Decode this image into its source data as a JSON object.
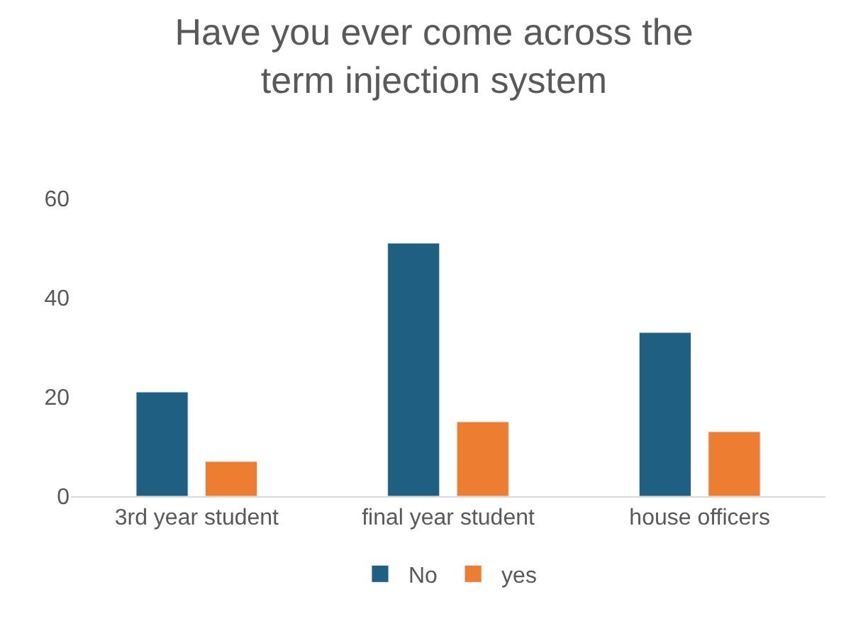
{
  "chart_data": {
    "type": "bar",
    "title": "Have you ever come across the term injection system",
    "categories": [
      "3rd year student",
      "final year student",
      "house officers"
    ],
    "series": [
      {
        "name": "No",
        "color": "#1f5f82",
        "values": [
          21,
          51,
          33
        ]
      },
      {
        "name": "yes",
        "color": "#ed7d31",
        "values": [
          7,
          15,
          13
        ]
      }
    ],
    "ylim": [
      0,
      60
    ],
    "yticks": [
      0,
      20,
      40,
      60
    ],
    "grid": false,
    "legend": "bottom"
  }
}
